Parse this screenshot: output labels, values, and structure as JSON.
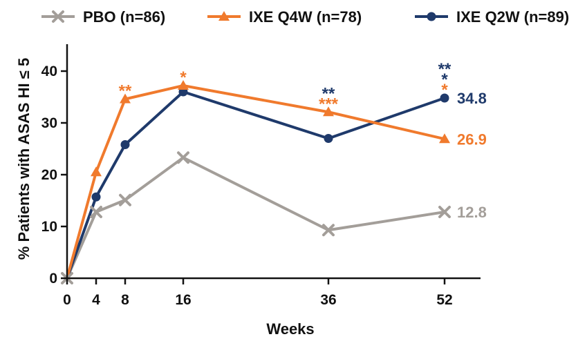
{
  "chart_data": {
    "type": "line",
    "xlabel": "Weeks",
    "ylabel": "% Patients with ASAS HI ≤ 5",
    "x": [
      0,
      4,
      8,
      16,
      36,
      52
    ],
    "xticks": [
      0,
      4,
      8,
      16,
      36,
      52
    ],
    "yticks": [
      0,
      10,
      20,
      30,
      40
    ],
    "xlim": [
      0,
      56
    ],
    "ylim": [
      0,
      45
    ],
    "grid": false,
    "legend_position": "top",
    "series": [
      {
        "name": "PBO (n=86)",
        "color": "#a39e99",
        "marker": "x",
        "values": [
          0,
          12.8,
          15.1,
          23.3,
          9.3,
          12.8
        ],
        "end_label": "12.8"
      },
      {
        "name": "IXE Q4W (n=78)",
        "color": "#f07a2d",
        "marker": "triangle",
        "values": [
          0,
          20.5,
          34.6,
          37.2,
          32.1,
          26.9
        ],
        "end_label": "26.9"
      },
      {
        "name": "IXE Q2W (n=89)",
        "color": "#1f3a6b",
        "marker": "circle",
        "values": [
          0,
          15.7,
          25.8,
          36.0,
          27.0,
          34.8
        ],
        "end_label": "34.8"
      }
    ],
    "annotations": [
      {
        "x": 8,
        "text": "**",
        "color": "#f07a2d"
      },
      {
        "x": 16,
        "text": "*",
        "color": "#f07a2d"
      },
      {
        "x": 36,
        "text": "**",
        "color": "#1f3a6b"
      },
      {
        "x": 36,
        "text": "***",
        "color": "#f07a2d"
      },
      {
        "x": 52,
        "text": "**",
        "color": "#1f3a6b"
      },
      {
        "x": 52,
        "text": "*",
        "color": "#1f3a6b"
      },
      {
        "x": 52,
        "text": "*",
        "color": "#f07a2d"
      }
    ]
  }
}
